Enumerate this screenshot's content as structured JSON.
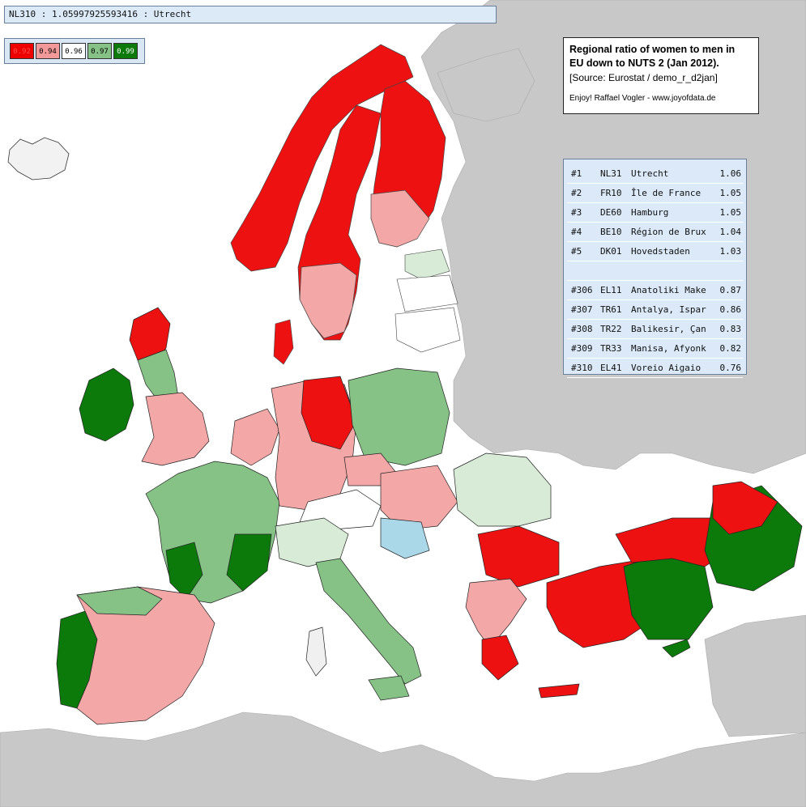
{
  "readout": {
    "text": "NL310 : 1.05997925593416 : Utrecht"
  },
  "legend": [
    {
      "label": "0.92",
      "color": "#ee0000",
      "text_color": "#ff5050"
    },
    {
      "label": "0.94",
      "color": "#f49999",
      "text_color": "#000000"
    },
    {
      "label": "0.96",
      "color": "#ffffff",
      "text_color": "#000000"
    },
    {
      "label": "0.97",
      "color": "#86c186",
      "text_color": "#000000"
    },
    {
      "label": "0.99",
      "color": "#0b7a0b",
      "text_color": "#ffffff"
    }
  ],
  "title_box": {
    "title_line1": "Regional ratio of women to men in",
    "title_line2": "EU down to NUTS 2 (Jan 2012).",
    "source": "[Source: Eurostat / demo_r_d2jan]",
    "credit": "Enjoy! Raffael Vogler - www.joyofdata.de"
  },
  "ranking": {
    "top": [
      {
        "rank": "#1",
        "code": "NL31",
        "name": "Utrecht",
        "value": "1.06"
      },
      {
        "rank": "#2",
        "code": "FR10",
        "name": "Île de France",
        "value": "1.05"
      },
      {
        "rank": "#3",
        "code": "DE60",
        "name": "Hamburg",
        "value": "1.05"
      },
      {
        "rank": "#4",
        "code": "BE10",
        "name": "Région de Brux",
        "value": "1.04"
      },
      {
        "rank": "#5",
        "code": "DK01",
        "name": "Hovedstaden",
        "value": "1.03"
      }
    ],
    "bottom": [
      {
        "rank": "#306",
        "code": "EL11",
        "name": "Anatoliki Make",
        "value": "0.87"
      },
      {
        "rank": "#307",
        "code": "TR61",
        "name": "Antalya, Ispar",
        "value": "0.86"
      },
      {
        "rank": "#308",
        "code": "TR22",
        "name": "Balikesir, Çan",
        "value": "0.83"
      },
      {
        "rank": "#309",
        "code": "TR33",
        "name": "Manisa, Afyonk",
        "value": "0.82"
      },
      {
        "rank": "#310",
        "code": "EL41",
        "name": "Voreio Aigaio",
        "value": "0.76"
      }
    ]
  },
  "map": {
    "sea_color": "#ffffff",
    "nonmember_land_color": "#c8c8c8",
    "missing_data_color": "#aad8e8",
    "border_color": "#222222"
  }
}
